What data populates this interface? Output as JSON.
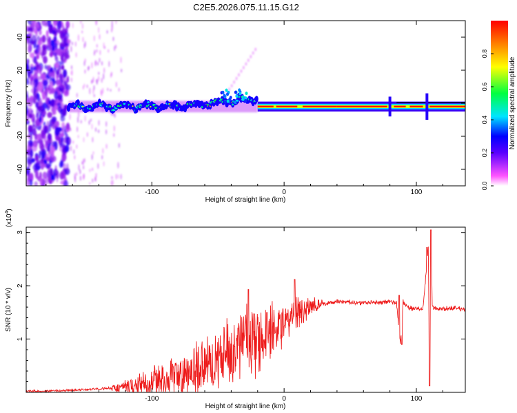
{
  "title": "C2E5.2026.075.11.15.G12",
  "chart_data": [
    {
      "type": "heatmap",
      "xlabel": "Height of straight line (km)",
      "ylabel": "Frequency (Hz)",
      "xlim": [
        -195,
        137
      ],
      "ylim": [
        -50,
        50
      ],
      "xticks": [
        -100,
        0,
        100
      ],
      "xtick_labels": [
        "-100",
        "0",
        "100"
      ],
      "yticks": [
        -40,
        -20,
        0,
        20,
        40
      ],
      "ytick_labels": [
        "-40",
        "-20",
        "0",
        "20",
        "40"
      ],
      "colorbar": {
        "label": "Normalized spectral amplitude",
        "range": [
          0,
          1
        ],
        "ticks": [
          0.0,
          0.2,
          0.4,
          0.6,
          0.8
        ],
        "tick_labels": [
          "0.0",
          "0.2",
          "0.4",
          "0.6",
          "0.8"
        ],
        "colors": [
          "#ffffff",
          "#ff44ff",
          "#0000ff",
          "#00e5ff",
          "#00ff00",
          "#ffff00",
          "#ff0000"
        ]
      },
      "signal_band": {
        "center_freq": -2,
        "x_start": -163,
        "x_end": 137
      },
      "noise_region_x": [
        -195,
        -125
      ]
    },
    {
      "type": "line",
      "xlabel": "Height of straight line (km)",
      "ylabel": "SNR (10 * v/v)",
      "y_scale_label": "(x10",
      "y_scale_exp": "4",
      "y_scale_close": ")",
      "xlim": [
        -195,
        137
      ],
      "ylim": [
        0,
        3.1
      ],
      "xticks": [
        -100,
        0,
        100
      ],
      "xtick_labels": [
        "-100",
        "0",
        "100"
      ],
      "yticks": [
        1,
        2,
        3
      ],
      "ytick_labels": [
        "1",
        "2",
        "3"
      ],
      "color": "#ff0000",
      "series": [
        {
          "name": "SNR",
          "x": [
            -195,
            -170,
            -150,
            -130,
            -120,
            -110,
            -100,
            -90,
            -80,
            -70,
            -60,
            -50,
            -40,
            -30,
            -20,
            -10,
            0,
            10,
            20,
            30,
            40,
            50,
            60,
            70,
            80,
            85,
            88,
            90,
            95,
            100,
            105,
            109,
            110,
            111,
            112,
            115,
            120,
            130,
            137
          ],
          "y": [
            0.02,
            0.03,
            0.05,
            0.08,
            0.1,
            0.14,
            0.2,
            0.25,
            0.3,
            0.38,
            0.48,
            0.62,
            0.8,
            0.95,
            1.05,
            1.12,
            1.3,
            1.52,
            1.6,
            1.66,
            1.7,
            1.69,
            1.68,
            1.69,
            1.7,
            1.68,
            0.9,
            1.7,
            1.58,
            1.58,
            1.58,
            2.7,
            0.1,
            3.05,
            1.6,
            1.57,
            1.57,
            1.58,
            1.55
          ]
        }
      ],
      "peaks": [
        {
          "x": -27,
          "y": 1.93
        },
        {
          "x": -13,
          "y": 1.5
        },
        {
          "x": 8,
          "y": 2.12
        },
        {
          "x": 87,
          "y": 1.82
        },
        {
          "x": 89,
          "y": 0.9
        },
        {
          "x": 108,
          "y": 2.72
        },
        {
          "x": 110,
          "y": 0.12
        },
        {
          "x": 111,
          "y": 3.05
        }
      ]
    }
  ]
}
